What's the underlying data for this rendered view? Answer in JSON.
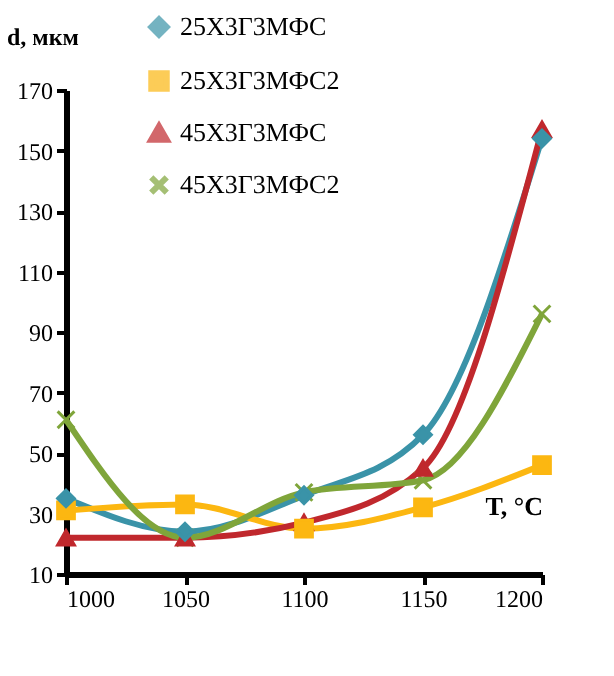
{
  "chart_data": {
    "type": "line",
    "xlabel": "T, °C",
    "ylabel": "d, мкм",
    "x": [
      1000,
      1050,
      1100,
      1150,
      1200
    ],
    "xlim": [
      1000,
      1200
    ],
    "xticks": [
      1000,
      1050,
      1100,
      1150,
      1200
    ],
    "ylim": [
      10,
      170
    ],
    "yticks": [
      10,
      30,
      50,
      70,
      90,
      110,
      130,
      150,
      170
    ],
    "grid": false,
    "legend": "top",
    "series": [
      {
        "name": "25Х3Г3МФС",
        "color": "#3a93a8",
        "marker": "diamond",
        "values": [
          35,
          24,
          36,
          56,
          154
        ]
      },
      {
        "name": "25Х3Г3МФС2",
        "color": "#fcb711",
        "marker": "square",
        "values": [
          31,
          33,
          25,
          32,
          46
        ]
      },
      {
        "name": "45Х3Г3МФС",
        "color": "#c0282d",
        "marker": "triangle",
        "values": [
          22,
          22,
          27,
          45,
          157
        ]
      },
      {
        "name": "45Х3Г3МФС2",
        "color": "#7fa53a",
        "marker": "cross",
        "values": [
          61,
          22,
          37,
          41,
          96
        ]
      }
    ]
  }
}
